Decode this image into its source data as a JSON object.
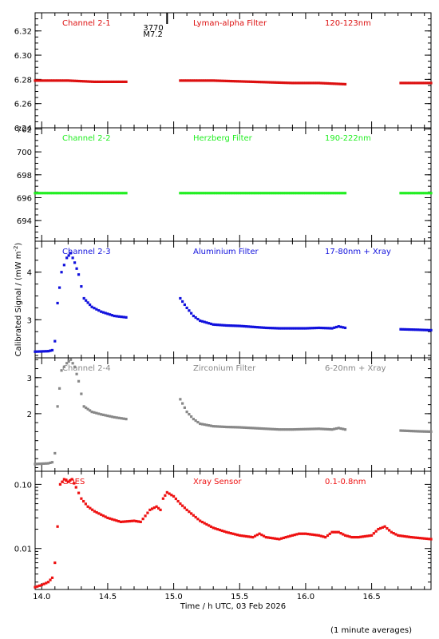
{
  "chart_data": {
    "type": "scatter",
    "ylabel_prefix": "Calibrated Signal / (mW m",
    "ylabel_exp": "-2",
    "ylabel_suffix": ")",
    "xlabel": "Time / h UTC, 03 Feb 2026",
    "footnote": "(1 minute averages)",
    "xlim": [
      13.95,
      16.95
    ],
    "xticks": [
      "14.0",
      "14.5",
      "15.0",
      "15.5",
      "16.0",
      "16.5"
    ],
    "xtick_values": [
      14.0,
      14.5,
      15.0,
      15.5,
      16.0,
      16.5
    ],
    "flare": {
      "x": 14.95,
      "number": "3770",
      "class": "M7.2"
    },
    "panels": [
      {
        "channel": "Channel 2-1",
        "filter": "Lyman-alpha Filter",
        "band": "120-123nm",
        "color": "#dd1111",
        "scale": "linear",
        "ylim": [
          6.24,
          6.335
        ],
        "yticks": [
          "6.24",
          "6.26",
          "6.28",
          "6.30",
          "6.32"
        ],
        "ytick_values": [
          6.24,
          6.26,
          6.28,
          6.3,
          6.32
        ],
        "segments": [
          {
            "x": [
              13.95,
              14.2,
              14.4,
              14.64
            ],
            "y": [
              6.279,
              6.279,
              6.278,
              6.278
            ]
          },
          {
            "x": [
              15.05,
              15.3,
              15.6,
              15.9,
              16.1,
              16.3
            ],
            "y": [
              6.279,
              6.279,
              6.278,
              6.277,
              6.277,
              6.276
            ]
          },
          {
            "x": [
              16.72,
              16.95
            ],
            "y": [
              6.277,
              6.277
            ]
          }
        ]
      },
      {
        "channel": "Channel 2-2",
        "filter": "Herzberg Filter",
        "band": "190-222nm",
        "color": "#22ee22",
        "scale": "linear",
        "ylim": [
          692.2,
          702.1
        ],
        "yticks": [
          "694",
          "696",
          "698",
          "700",
          "702"
        ],
        "ytick_values": [
          694,
          696,
          698,
          700,
          702
        ],
        "segments": [
          {
            "x": [
              13.95,
              14.3,
              14.64
            ],
            "y": [
              696.4,
              696.4,
              696.4
            ]
          },
          {
            "x": [
              15.05,
              15.6,
              16.3
            ],
            "y": [
              696.4,
              696.4,
              696.4
            ]
          },
          {
            "x": [
              16.72,
              16.95
            ],
            "y": [
              696.4,
              696.4
            ]
          }
        ]
      },
      {
        "channel": "Channel 2-3",
        "filter": "Aluminium Filter",
        "band": "17-80nm + Xray",
        "color": "#1111dd",
        "scale": "linear",
        "ylim": [
          2.2,
          4.65
        ],
        "yticks": [
          "3",
          "4"
        ],
        "ytick_values": [
          3,
          4
        ],
        "segments": [
          {
            "x": [
              13.95,
              14.05,
              14.08,
              14.1,
              14.12,
              14.15,
              14.19,
              14.22,
              14.25,
              14.28,
              14.32,
              14.38,
              14.45,
              14.55,
              14.64
            ],
            "y": [
              2.33,
              2.34,
              2.36,
              2.55,
              3.35,
              4.0,
              4.3,
              4.4,
              4.2,
              3.95,
              3.45,
              3.27,
              3.17,
              3.08,
              3.05
            ]
          },
          {
            "x": [
              15.05,
              15.1,
              15.15,
              15.2,
              15.3,
              15.4,
              15.5,
              15.6,
              15.7,
              15.8,
              15.9,
              16.0,
              16.1,
              16.2,
              16.25,
              16.3
            ],
            "y": [
              3.45,
              3.25,
              3.08,
              2.98,
              2.9,
              2.88,
              2.87,
              2.85,
              2.83,
              2.82,
              2.82,
              2.82,
              2.83,
              2.82,
              2.86,
              2.83
            ]
          },
          {
            "x": [
              16.72,
              16.85,
              16.95
            ],
            "y": [
              2.8,
              2.79,
              2.78
            ]
          }
        ]
      },
      {
        "channel": "Channel 2-4",
        "filter": "Zirconium Filter",
        "band": "6-20nm + Xray",
        "color": "#888888",
        "scale": "linear",
        "ylim": [
          0.4,
          3.55
        ],
        "yticks": [
          "2",
          "3"
        ],
        "ytick_values": [
          2,
          3
        ],
        "segments": [
          {
            "x": [
              13.95,
              14.05,
              14.08,
              14.1,
              14.12,
              14.15,
              14.19,
              14.22,
              14.25,
              14.28,
              14.32,
              14.38,
              14.45,
              14.55,
              14.64
            ],
            "y": [
              0.6,
              0.62,
              0.65,
              0.9,
              2.2,
              3.2,
              3.4,
              3.5,
              3.3,
              2.9,
              2.2,
              2.05,
              1.98,
              1.9,
              1.85
            ]
          },
          {
            "x": [
              15.05,
              15.1,
              15.15,
              15.2,
              15.3,
              15.4,
              15.5,
              15.6,
              15.7,
              15.8,
              15.9,
              16.0,
              16.1,
              16.2,
              16.25,
              16.3
            ],
            "y": [
              2.4,
              2.05,
              1.85,
              1.72,
              1.65,
              1.63,
              1.62,
              1.6,
              1.58,
              1.56,
              1.56,
              1.57,
              1.58,
              1.56,
              1.6,
              1.56
            ]
          },
          {
            "x": [
              16.72,
              16.85,
              16.95
            ],
            "y": [
              1.53,
              1.51,
              1.5
            ]
          }
        ]
      },
      {
        "channel": "GOES",
        "filter": "Xray Sensor",
        "band": "0.1-0.8nm",
        "color": "#ee1111",
        "scale": "log",
        "ylim": [
          0.0023,
          0.16
        ],
        "yticks": [
          "0.01",
          "0.10"
        ],
        "ytick_values": [
          0.01,
          0.1
        ],
        "segments": [
          {
            "x": [
              13.95,
              14.0,
              14.05,
              14.08,
              14.1,
              14.12,
              14.14,
              14.17,
              14.2,
              14.23,
              14.26,
              14.3,
              14.35,
              14.4,
              14.5,
              14.6,
              14.7,
              14.75,
              14.82,
              14.87,
              14.9,
              14.92,
              14.95,
              15.0,
              15.05,
              15.1,
              15.2,
              15.3,
              15.4,
              15.5,
              15.6,
              15.65,
              15.7,
              15.8,
              15.85,
              15.9,
              15.95,
              16.0,
              16.1,
              16.15,
              16.2,
              16.25,
              16.3,
              16.35,
              16.4,
              16.5,
              16.55,
              16.6,
              16.65,
              16.7,
              16.8,
              16.95
            ],
            "y": [
              0.0025,
              0.0027,
              0.003,
              0.0035,
              0.006,
              0.022,
              0.1,
              0.12,
              0.11,
              0.12,
              0.09,
              0.06,
              0.045,
              0.038,
              0.03,
              0.026,
              0.027,
              0.026,
              0.04,
              0.045,
              0.04,
              0.06,
              0.075,
              0.065,
              0.05,
              0.04,
              0.027,
              0.021,
              0.018,
              0.016,
              0.015,
              0.017,
              0.015,
              0.014,
              0.015,
              0.016,
              0.017,
              0.017,
              0.016,
              0.015,
              0.018,
              0.018,
              0.016,
              0.015,
              0.015,
              0.016,
              0.02,
              0.022,
              0.018,
              0.016,
              0.015,
              0.014
            ]
          }
        ]
      }
    ]
  }
}
